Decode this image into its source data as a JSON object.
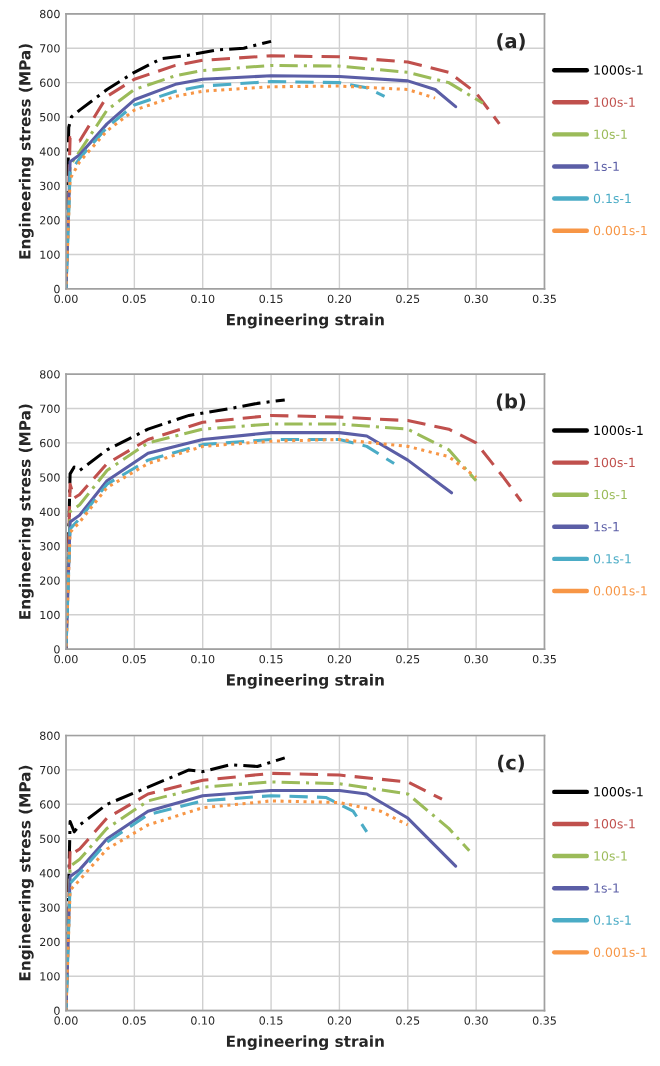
{
  "chart_data": [
    {
      "type": "line",
      "xlabel": "Engineering strain",
      "ylabel": "Engineering stress (MPa)",
      "annotations": [
        "(a)"
      ],
      "xlim": [
        0,
        0.35
      ],
      "xticks": [
        {
          "value": 0,
          "label": "0.00"
        },
        {
          "value": 0.05,
          "label": "0.05"
        },
        {
          "value": 0.1,
          "label": "0.10"
        },
        {
          "value": 0.15,
          "label": "0.15"
        },
        {
          "value": 0.2,
          "label": "0.20"
        },
        {
          "value": 0.25,
          "label": "0.25"
        },
        {
          "value": 0.3,
          "label": "0.30"
        },
        {
          "value": 0.35,
          "label": "0.35"
        }
      ],
      "ylim": [
        0,
        800
      ],
      "yticks": [
        0,
        100,
        200,
        300,
        400,
        500,
        600,
        700,
        800
      ],
      "grid": true,
      "legend": "right",
      "marker": "none",
      "series": [
        {
          "name": "1000s-1",
          "color": "#000000",
          "line_style": "dashdot",
          "x": [
            0,
            0.002,
            0.004,
            0.01,
            0.03,
            0.05,
            0.07,
            0.09,
            0.11,
            0.13,
            0.15
          ],
          "values": [
            0,
            470,
            500,
            520,
            580,
            630,
            670,
            680,
            695,
            700,
            720
          ]
        },
        {
          "name": "100s-1",
          "color": "#c0504d",
          "line_style": "dashed",
          "x": [
            0,
            0.003,
            0.01,
            0.03,
            0.05,
            0.08,
            0.1,
            0.15,
            0.2,
            0.25,
            0.28,
            0.3,
            0.317
          ],
          "values": [
            0,
            440,
            430,
            560,
            610,
            650,
            665,
            678,
            675,
            660,
            630,
            570,
            480
          ]
        },
        {
          "name": "10s-1",
          "color": "#9bbb59",
          "line_style": "dashdot",
          "x": [
            0,
            0.003,
            0.01,
            0.03,
            0.05,
            0.08,
            0.1,
            0.15,
            0.2,
            0.25,
            0.28,
            0.305
          ],
          "values": [
            0,
            360,
            400,
            520,
            580,
            620,
            635,
            650,
            648,
            630,
            600,
            540
          ]
        },
        {
          "name": "1s-1",
          "color": "#5b5ea6",
          "line_style": "solid",
          "x": [
            0,
            0.003,
            0.01,
            0.03,
            0.05,
            0.08,
            0.1,
            0.15,
            0.2,
            0.25,
            0.27,
            0.285
          ],
          "values": [
            0,
            370,
            390,
            480,
            550,
            595,
            610,
            620,
            618,
            605,
            580,
            530
          ]
        },
        {
          "name": "0.1s-1",
          "color": "#4bacc6",
          "line_style": "dashed",
          "x": [
            0,
            0.003,
            0.01,
            0.03,
            0.05,
            0.08,
            0.1,
            0.15,
            0.2,
            0.22,
            0.233
          ],
          "values": [
            0,
            340,
            380,
            470,
            535,
            575,
            590,
            603,
            600,
            585,
            560
          ]
        },
        {
          "name": "0.001s-1",
          "color": "#f79646",
          "line_style": "dotted",
          "x": [
            0,
            0.003,
            0.01,
            0.03,
            0.05,
            0.08,
            0.1,
            0.15,
            0.2,
            0.25,
            0.27
          ],
          "values": [
            0,
            320,
            370,
            460,
            520,
            560,
            575,
            588,
            590,
            580,
            555
          ]
        }
      ]
    },
    {
      "type": "line",
      "xlabel": "Engineering strain",
      "ylabel": "Engineering stress (MPa)",
      "annotations": [
        "(b)"
      ],
      "xlim": [
        0,
        0.35
      ],
      "xticks": [
        {
          "value": 0,
          "label": "0.00"
        },
        {
          "value": 0.05,
          "label": "0.05"
        },
        {
          "value": 0.1,
          "label": "0.10"
        },
        {
          "value": 0.15,
          "label": "0.15"
        },
        {
          "value": 0.2,
          "label": "0.20"
        },
        {
          "value": 0.25,
          "label": "0.25"
        },
        {
          "value": 0.3,
          "label": "0.30"
        },
        {
          "value": 0.35,
          "label": "0.35"
        }
      ],
      "ylim": [
        0,
        800
      ],
      "yticks": [
        0,
        100,
        200,
        300,
        400,
        500,
        600,
        700,
        800
      ],
      "grid": true,
      "legend": "right",
      "marker": "none",
      "series": [
        {
          "name": "1000s-1",
          "color": "#000000",
          "line_style": "dashdot",
          "x": [
            0,
            0.003,
            0.006,
            0.01,
            0.03,
            0.06,
            0.09,
            0.12,
            0.14,
            0.16
          ],
          "values": [
            0,
            510,
            530,
            520,
            580,
            640,
            680,
            700,
            715,
            725
          ]
        },
        {
          "name": "100s-1",
          "color": "#c0504d",
          "line_style": "dashed",
          "x": [
            0,
            0.003,
            0.006,
            0.01,
            0.03,
            0.06,
            0.1,
            0.15,
            0.2,
            0.25,
            0.28,
            0.3,
            0.32,
            0.333
          ],
          "values": [
            0,
            480,
            440,
            450,
            540,
            610,
            660,
            680,
            675,
            665,
            640,
            600,
            500,
            430
          ]
        },
        {
          "name": "10s-1",
          "color": "#9bbb59",
          "line_style": "dashdot",
          "x": [
            0,
            0.003,
            0.01,
            0.03,
            0.06,
            0.1,
            0.15,
            0.2,
            0.25,
            0.28,
            0.3
          ],
          "values": [
            0,
            400,
            420,
            520,
            600,
            640,
            655,
            655,
            640,
            580,
            490
          ]
        },
        {
          "name": "1s-1",
          "color": "#5b5ea6",
          "line_style": "solid",
          "x": [
            0,
            0.003,
            0.01,
            0.03,
            0.06,
            0.1,
            0.15,
            0.2,
            0.22,
            0.25,
            0.282
          ],
          "values": [
            0,
            370,
            390,
            490,
            570,
            610,
            630,
            630,
            620,
            550,
            455
          ]
        },
        {
          "name": "0.1s-1",
          "color": "#4bacc6",
          "line_style": "dashed",
          "x": [
            0,
            0.003,
            0.01,
            0.03,
            0.06,
            0.1,
            0.15,
            0.2,
            0.22,
            0.24
          ],
          "values": [
            0,
            350,
            380,
            480,
            550,
            595,
            610,
            610,
            590,
            540
          ]
        },
        {
          "name": "0.001s-1",
          "color": "#f79646",
          "line_style": "dotted",
          "x": [
            0,
            0.003,
            0.01,
            0.03,
            0.06,
            0.1,
            0.15,
            0.2,
            0.25,
            0.28,
            0.3
          ],
          "values": [
            0,
            340,
            370,
            470,
            540,
            590,
            605,
            610,
            590,
            560,
            500
          ]
        }
      ]
    },
    {
      "type": "line",
      "xlabel": "Engineering strain",
      "ylabel": "Engineering stress (MPa)",
      "annotations": [
        "(c)"
      ],
      "xlim": [
        0,
        0.35
      ],
      "xticks": [
        {
          "value": 0,
          "label": "0.00"
        },
        {
          "value": 0.05,
          "label": "0.05"
        },
        {
          "value": 0.1,
          "label": "0.10"
        },
        {
          "value": 0.15,
          "label": "0.15"
        },
        {
          "value": 0.2,
          "label": "0.20"
        },
        {
          "value": 0.25,
          "label": "0.25"
        },
        {
          "value": 0.3,
          "label": "0.30"
        },
        {
          "value": 0.35,
          "label": "0.35"
        }
      ],
      "ylim": [
        0,
        800
      ],
      "yticks": [
        0,
        100,
        200,
        300,
        400,
        500,
        600,
        700,
        800
      ],
      "grid": true,
      "legend": "right",
      "marker": "none",
      "series": [
        {
          "name": "1000s-1",
          "color": "#000000",
          "line_style": "dashdot",
          "x": [
            0,
            0.003,
            0.006,
            0.01,
            0.03,
            0.06,
            0.09,
            0.1,
            0.12,
            0.14,
            0.16
          ],
          "values": [
            0,
            550,
            520,
            540,
            600,
            650,
            700,
            695,
            715,
            710,
            735
          ]
        },
        {
          "name": "100s-1",
          "color": "#c0504d",
          "line_style": "dashed",
          "x": [
            0,
            0.003,
            0.006,
            0.01,
            0.03,
            0.06,
            0.1,
            0.15,
            0.2,
            0.25,
            0.275
          ],
          "values": [
            0,
            470,
            460,
            470,
            560,
            630,
            670,
            690,
            685,
            665,
            615
          ]
        },
        {
          "name": "10s-1",
          "color": "#9bbb59",
          "line_style": "dashdot",
          "x": [
            0,
            0.003,
            0.01,
            0.03,
            0.06,
            0.1,
            0.15,
            0.2,
            0.25,
            0.28,
            0.295
          ],
          "values": [
            0,
            420,
            440,
            530,
            610,
            650,
            665,
            660,
            630,
            530,
            465
          ]
        },
        {
          "name": "1s-1",
          "color": "#5b5ea6",
          "line_style": "solid",
          "x": [
            0,
            0.003,
            0.01,
            0.03,
            0.06,
            0.1,
            0.15,
            0.2,
            0.22,
            0.25,
            0.285
          ],
          "values": [
            0,
            390,
            410,
            500,
            580,
            625,
            640,
            640,
            630,
            560,
            420
          ]
        },
        {
          "name": "0.1s-1",
          "color": "#4bacc6",
          "line_style": "dashed",
          "x": [
            0,
            0.003,
            0.01,
            0.03,
            0.06,
            0.1,
            0.15,
            0.19,
            0.21,
            0.22
          ],
          "values": [
            0,
            370,
            400,
            490,
            570,
            610,
            625,
            620,
            580,
            520
          ]
        },
        {
          "name": "0.001s-1",
          "color": "#f79646",
          "line_style": "dotted",
          "x": [
            0,
            0.003,
            0.01,
            0.03,
            0.06,
            0.1,
            0.15,
            0.2,
            0.23,
            0.25
          ],
          "values": [
            0,
            350,
            380,
            470,
            540,
            590,
            610,
            605,
            580,
            540
          ]
        }
      ]
    }
  ]
}
